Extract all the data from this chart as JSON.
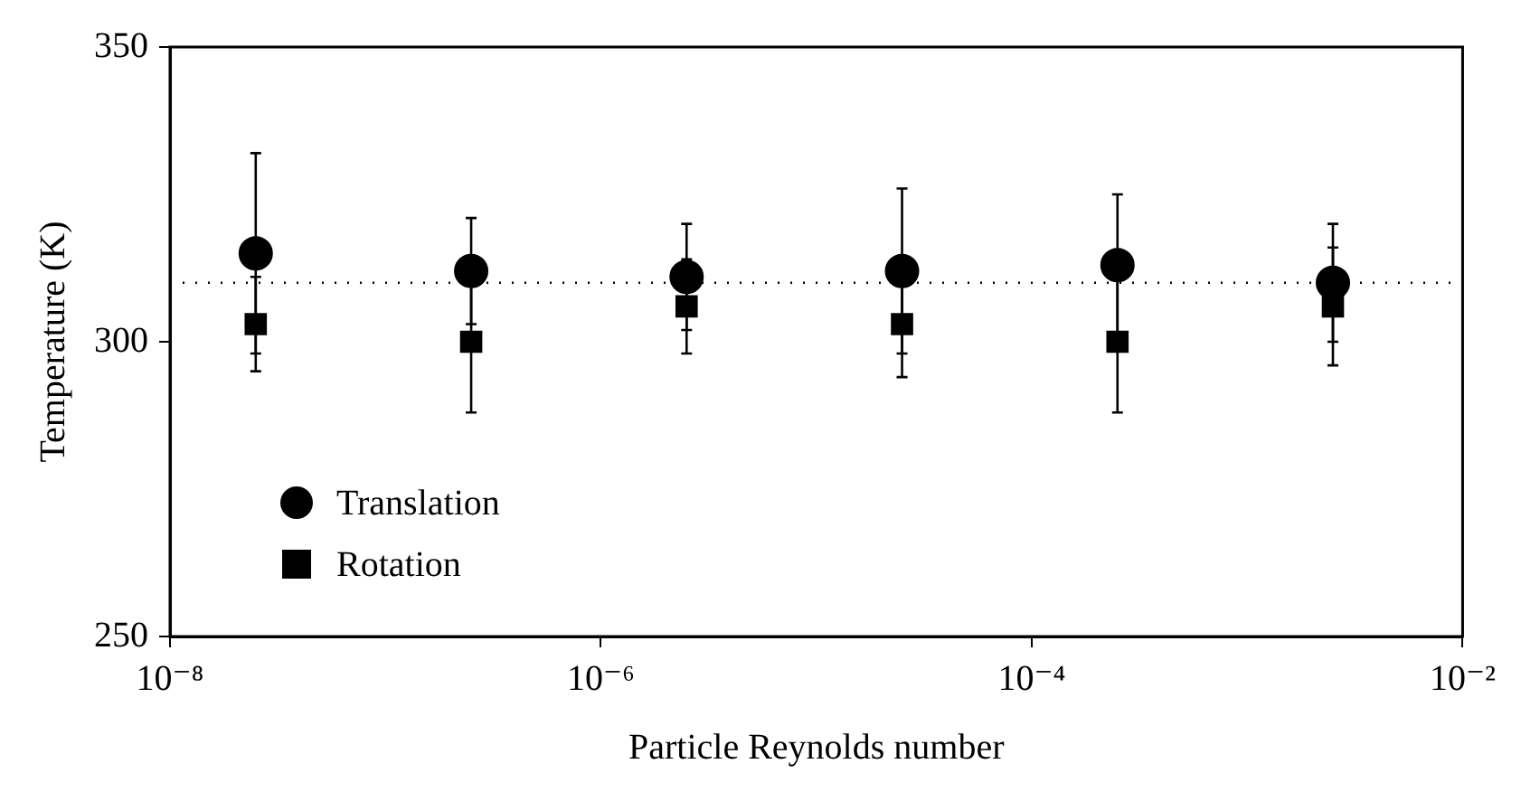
{
  "chart_data": {
    "type": "scatter",
    "xlabel": "Particle Reynolds number",
    "ylabel": "Temperature (K)",
    "x": [
      2.5e-08,
      2.5e-07,
      2.5e-06,
      2.5e-05,
      0.00025,
      0.0025
    ],
    "series": [
      {
        "name": "Translation",
        "color": "#000000",
        "marker": "circle",
        "values": [
          315,
          312,
          311,
          312,
          313,
          310
        ],
        "errors": [
          17,
          9,
          9,
          14,
          12,
          10
        ]
      },
      {
        "name": "Rotation",
        "color": "#000000",
        "marker": "square",
        "values": [
          303,
          300,
          306,
          303,
          300,
          306
        ],
        "errors": [
          8,
          12,
          8,
          9,
          12,
          10
        ]
      }
    ],
    "log": "x",
    "xlim": [
      1e-08,
      0.01
    ],
    "xticks": [
      {
        "value": 1e-08,
        "label": "10⁻⁸"
      },
      {
        "value": 1e-06,
        "label": "10⁻⁶"
      },
      {
        "value": 0.0001,
        "label": "10⁻⁴"
      },
      {
        "value": 0.01,
        "label": "10⁻²"
      }
    ],
    "ylim": [
      250,
      350
    ],
    "yticks": [
      250,
      300,
      350
    ],
    "ref_lines": [
      {
        "axis": "y",
        "value": 310,
        "color": "#000000",
        "line_style": "dotted"
      }
    ],
    "grid": false,
    "legend": "bottom left"
  }
}
